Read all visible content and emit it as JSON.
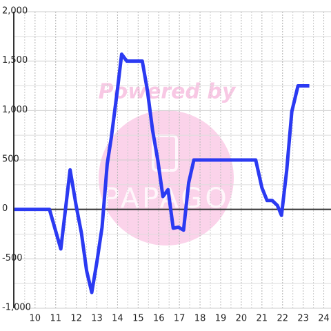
{
  "chart_data": {
    "type": "line",
    "watermark": "Powered by",
    "logo_text": "PAPAGO",
    "x": [
      9,
      10.7,
      11.25,
      11.7,
      12,
      12.25,
      12.5,
      12.75,
      13,
      13.25,
      13.5,
      13.7,
      14,
      14.2,
      14.45,
      15.2,
      15.45,
      15.7,
      15.95,
      16.2,
      16.45,
      16.7,
      16.95,
      17.2,
      17.45,
      17.7,
      20.7,
      21,
      21.25,
      21.5,
      21.75,
      21.95,
      22.2,
      22.45,
      22.75,
      23.3
    ],
    "series": [
      {
        "color": "#2b3af2",
        "values": [
          0,
          0,
          -400,
          400,
          30,
          -240,
          -620,
          -840,
          -530,
          -180,
          460,
          730,
          1220,
          1570,
          1500,
          1500,
          1200,
          800,
          500,
          130,
          200,
          -190,
          -180,
          -210,
          270,
          500,
          500,
          220,
          90,
          90,
          40,
          -60,
          390,
          990,
          1250,
          1250
        ]
      }
    ],
    "xlim": [
      8.97,
      24.35
    ],
    "xticks": [
      10,
      11,
      12,
      13,
      14,
      15,
      16,
      17,
      18,
      19,
      20,
      21,
      22,
      23,
      24
    ],
    "ylim": [
      -1000,
      2000
    ],
    "yticks": [
      {
        "value": -1000,
        "label": "-1,000"
      },
      -500,
      0,
      500,
      {
        "value": 1000,
        "label": "1,000"
      },
      {
        "value": 1500,
        "label": "1,500"
      },
      {
        "value": 2000,
        "label": "2,000"
      }
    ],
    "grid": true
  }
}
